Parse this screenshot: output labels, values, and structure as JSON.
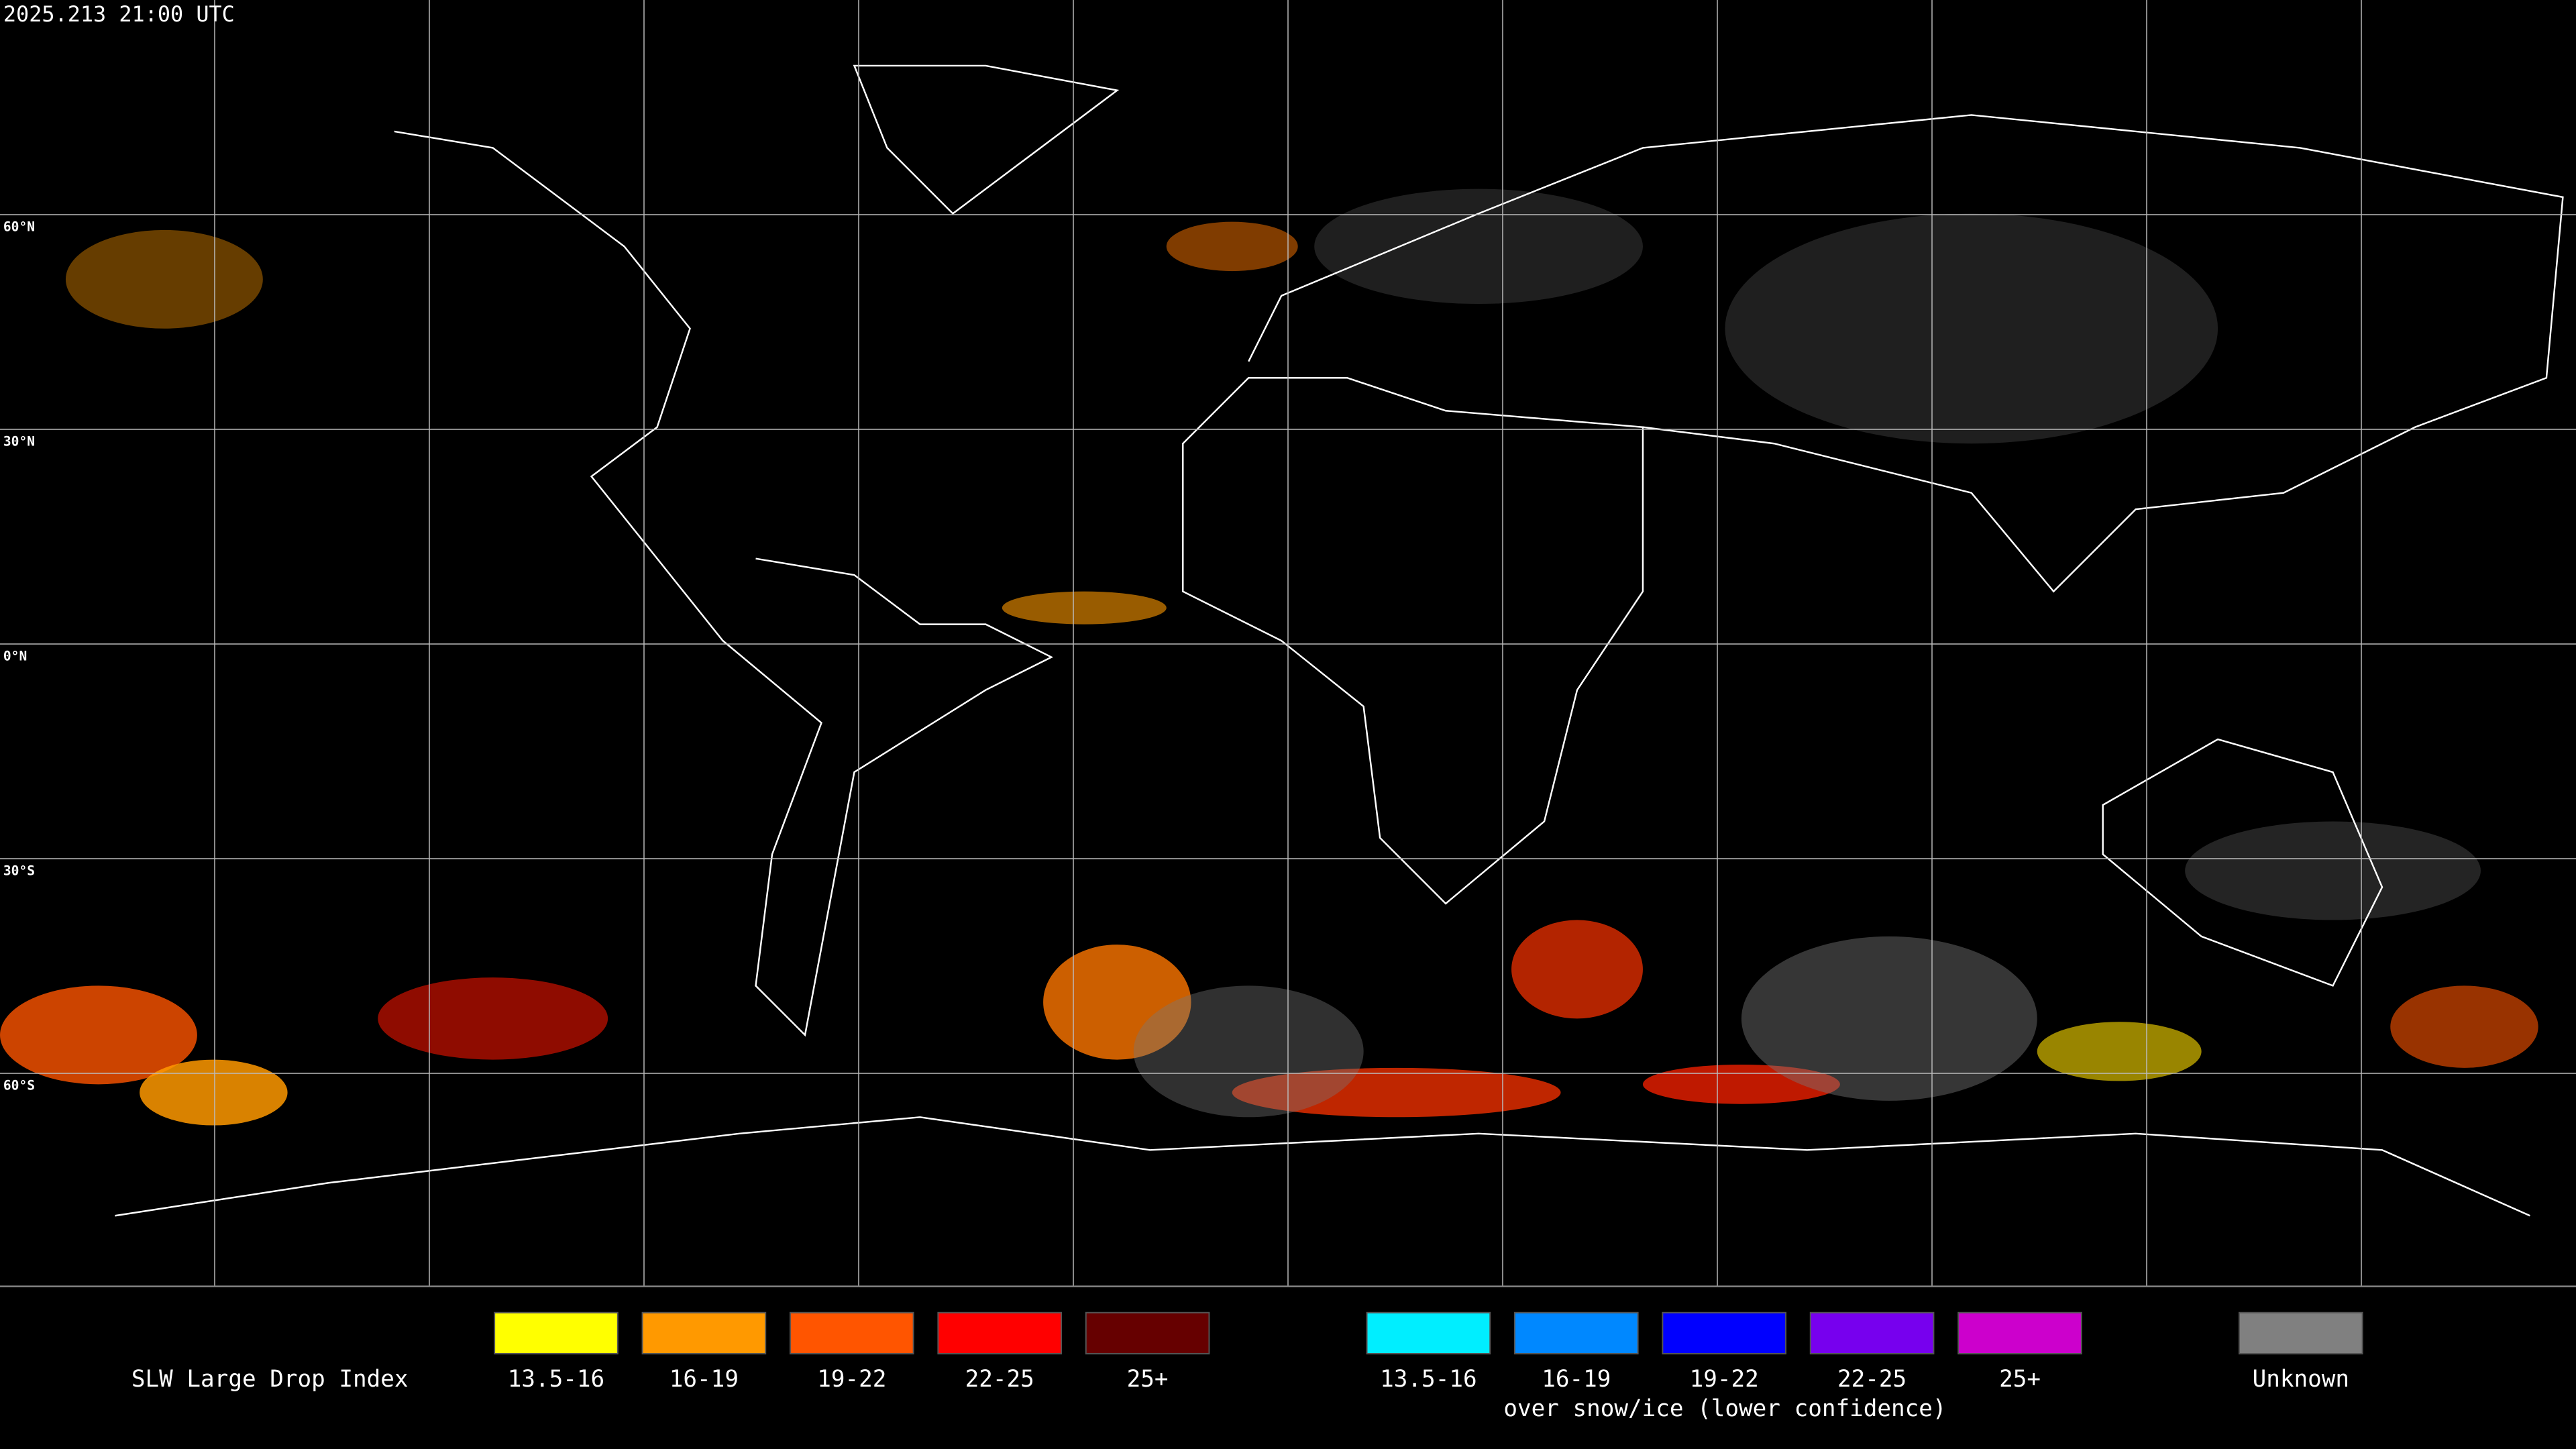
{
  "header": {
    "timestamp": "2025.213 21:00 UTC"
  },
  "map": {
    "latitude_labels": [
      "60°N",
      "30°N",
      "0°N",
      "30°S",
      "60°S"
    ]
  },
  "legend": {
    "title": "SLW Large Drop Index",
    "items": [
      {
        "label": "13.5-16",
        "color": "#ffff00"
      },
      {
        "label": "16-19",
        "color": "#ff9900"
      },
      {
        "label": "19-22",
        "color": "#ff5500"
      },
      {
        "label": "22-25",
        "color": "#ff0000"
      },
      {
        "label": "25+",
        "color": "#660000"
      }
    ],
    "snow_items": [
      {
        "label": "13.5-16",
        "color": "#00eeff"
      },
      {
        "label": "16-19",
        "color": "#0088ff"
      },
      {
        "label": "19-22",
        "color": "#0000ff"
      },
      {
        "label": "22-25",
        "color": "#7700ee"
      },
      {
        "label": "25+",
        "color": "#cc00cc"
      }
    ],
    "snow_note": "over snow/ice (lower confidence)",
    "unknown": {
      "label": "Unknown",
      "color": "#808080"
    }
  }
}
